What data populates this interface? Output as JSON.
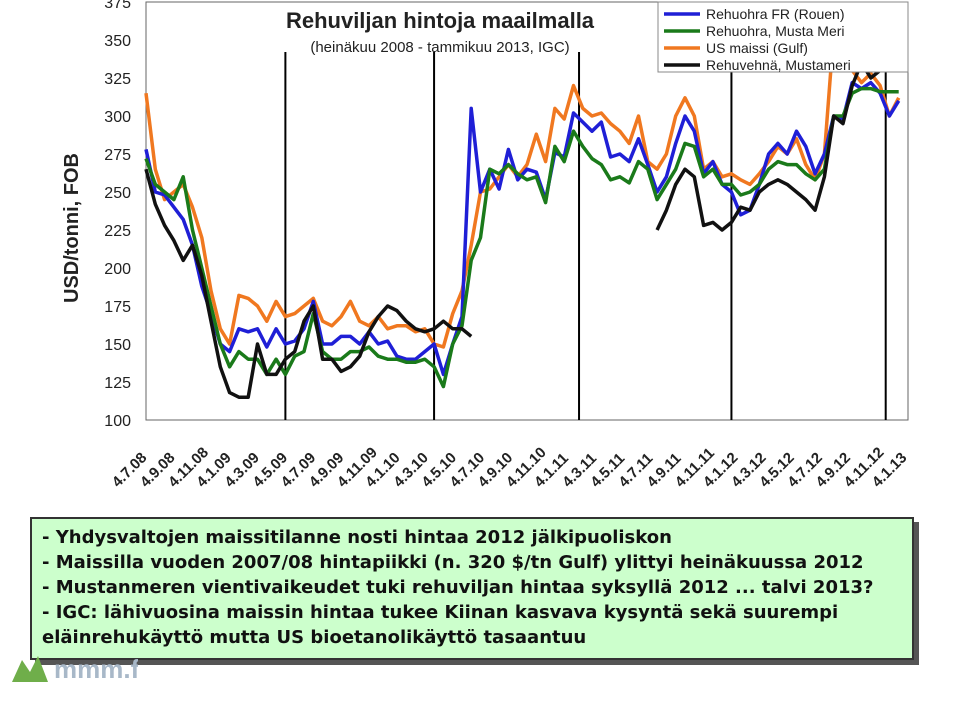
{
  "chart_data": {
    "type": "line",
    "title": "Rehuviljan hintoja maailmalla",
    "subtitle": "(heinäkuu 2008 - tammikuu 2013, IGC)",
    "ylabel": "USD/tonni, FOB",
    "ylim": [
      100,
      375
    ],
    "yticks": [
      100,
      125,
      150,
      175,
      200,
      225,
      250,
      275,
      300,
      325,
      350,
      375
    ],
    "xtick_labels": [
      "4.7.08",
      "4.9.08",
      "4.11.08",
      "4.1.09",
      "4.3.09",
      "4.5.09",
      "4.7.09",
      "4.9.09",
      "4.11.09",
      "4.1.10",
      "4.3.10",
      "4.5.10",
      "4.7.10",
      "4.9.10",
      "4.11.10",
      "4.1.11",
      "4.3.11",
      "4.5.11",
      "4.7.11",
      "4.9.11",
      "4.11.11",
      "4.1.12",
      "4.3.12",
      "4.5.12",
      "4.7.12",
      "4.9.12",
      "4.11.12",
      "4.1.13"
    ],
    "grid": false,
    "legend_position": "top-right",
    "year_markers": [
      "2009-01",
      "2010-01",
      "2011-01",
      "2012-01",
      "2013-01"
    ],
    "series": [
      {
        "name": "Rehuohra FR (Rouen)",
        "color": "#1f1fd6",
        "points": [
          [
            0,
            278
          ],
          [
            0.5,
            250
          ],
          [
            1,
            248
          ],
          [
            1.5,
            240
          ],
          [
            2,
            232
          ],
          [
            2.5,
            215
          ],
          [
            3,
            188
          ],
          [
            3.5,
            170
          ],
          [
            4,
            150
          ],
          [
            4.5,
            145
          ],
          [
            5,
            160
          ],
          [
            5.5,
            158
          ],
          [
            6,
            160
          ],
          [
            6.5,
            148
          ],
          [
            7,
            160
          ],
          [
            7.5,
            150
          ],
          [
            8,
            152
          ],
          [
            8.5,
            160
          ],
          [
            9,
            178
          ],
          [
            9.5,
            150
          ],
          [
            10,
            150
          ],
          [
            10.5,
            155
          ],
          [
            11,
            155
          ],
          [
            11.5,
            150
          ],
          [
            12,
            158
          ],
          [
            12.5,
            150
          ],
          [
            13,
            152
          ],
          [
            13.5,
            142
          ],
          [
            14,
            140
          ],
          [
            14.5,
            140
          ],
          [
            15,
            145
          ],
          [
            15.5,
            150
          ],
          [
            16,
            130
          ],
          [
            16.5,
            150
          ],
          [
            17,
            168
          ],
          [
            17.5,
            305
          ],
          [
            18,
            250
          ],
          [
            18.5,
            265
          ],
          [
            19,
            252
          ],
          [
            19.5,
            278
          ],
          [
            20,
            258
          ],
          [
            20.5,
            265
          ],
          [
            21,
            263
          ],
          [
            21.5,
            245
          ],
          [
            22,
            276
          ],
          [
            22.5,
            273
          ],
          [
            23,
            302
          ],
          [
            23.5,
            296
          ],
          [
            24,
            290
          ],
          [
            24.5,
            296
          ],
          [
            25,
            273
          ],
          [
            25.5,
            275
          ],
          [
            26,
            270
          ],
          [
            26.5,
            285
          ],
          [
            27,
            268
          ],
          [
            27.5,
            250
          ],
          [
            28,
            260
          ],
          [
            28.5,
            282
          ],
          [
            29,
            300
          ],
          [
            29.5,
            290
          ],
          [
            30,
            262
          ],
          [
            30.5,
            270
          ],
          [
            31,
            255
          ],
          [
            31.5,
            250
          ],
          [
            32,
            235
          ],
          [
            32.5,
            238
          ],
          [
            33,
            255
          ],
          [
            33.5,
            275
          ],
          [
            34,
            282
          ],
          [
            34.5,
            275
          ],
          [
            35,
            290
          ],
          [
            35.5,
            280
          ],
          [
            36,
            262
          ],
          [
            36.5,
            275
          ],
          [
            37,
            300
          ],
          [
            37.5,
            298
          ],
          [
            38,
            322
          ],
          [
            38.5,
            318
          ],
          [
            39,
            322
          ],
          [
            39.5,
            315
          ],
          [
            40,
            300
          ],
          [
            40.5,
            310
          ]
        ]
      },
      {
        "name": "Rehuohra, Musta Meri",
        "color": "#1a7a1a",
        "points": [
          [
            0,
            272
          ],
          [
            0.5,
            255
          ],
          [
            1,
            250
          ],
          [
            1.5,
            245
          ],
          [
            2,
            260
          ],
          [
            2.5,
            225
          ],
          [
            3,
            200
          ],
          [
            3.5,
            175
          ],
          [
            4,
            150
          ],
          [
            4.5,
            135
          ],
          [
            5,
            145
          ],
          [
            5.5,
            140
          ],
          [
            6,
            140
          ],
          [
            6.5,
            130
          ],
          [
            7,
            140
          ],
          [
            7.5,
            130
          ],
          [
            8,
            142
          ],
          [
            8.5,
            145
          ],
          [
            9,
            170
          ],
          [
            9.5,
            145
          ],
          [
            10,
            140
          ],
          [
            10.5,
            140
          ],
          [
            11,
            145
          ],
          [
            11.5,
            145
          ],
          [
            12,
            148
          ],
          [
            12.5,
            142
          ],
          [
            13,
            140
          ],
          [
            13.5,
            140
          ],
          [
            14,
            138
          ],
          [
            14.5,
            138
          ],
          [
            15,
            140
          ],
          [
            15.5,
            135
          ],
          [
            16,
            122
          ],
          [
            16.5,
            150
          ],
          [
            17,
            162
          ],
          [
            17.5,
            205
          ],
          [
            18,
            220
          ],
          [
            18.5,
            265
          ],
          [
            19,
            262
          ],
          [
            19.5,
            268
          ],
          [
            20,
            262
          ],
          [
            20.5,
            258
          ],
          [
            21,
            260
          ],
          [
            21.5,
            243
          ],
          [
            22,
            280
          ],
          [
            22.5,
            270
          ],
          [
            23,
            290
          ],
          [
            23.5,
            280
          ],
          [
            24,
            272
          ],
          [
            24.5,
            268
          ],
          [
            25,
            258
          ],
          [
            25.5,
            260
          ],
          [
            26,
            256
          ],
          [
            26.5,
            270
          ],
          [
            27,
            265
          ],
          [
            27.5,
            245
          ],
          [
            28,
            255
          ],
          [
            28.5,
            265
          ],
          [
            29,
            282
          ],
          [
            29.5,
            280
          ],
          [
            30,
            260
          ],
          [
            30.5,
            265
          ],
          [
            31,
            255
          ],
          [
            31.5,
            255
          ],
          [
            32,
            248
          ],
          [
            32.5,
            250
          ],
          [
            33,
            255
          ],
          [
            33.5,
            265
          ],
          [
            34,
            270
          ],
          [
            34.5,
            268
          ],
          [
            35,
            268
          ],
          [
            35.5,
            262
          ],
          [
            36,
            258
          ],
          [
            36.5,
            265
          ],
          [
            37,
            300
          ],
          [
            37.5,
            300
          ],
          [
            38,
            315
          ],
          [
            38.5,
            318
          ],
          [
            39,
            318
          ],
          [
            39.5,
            316
          ],
          [
            40,
            316
          ],
          [
            40.5,
            316
          ]
        ]
      },
      {
        "name": "US maissi (Gulf)",
        "color": "#f07820",
        "points": [
          [
            0,
            315
          ],
          [
            0.5,
            265
          ],
          [
            1,
            245
          ],
          [
            1.5,
            250
          ],
          [
            2,
            255
          ],
          [
            2.5,
            240
          ],
          [
            3,
            220
          ],
          [
            3.5,
            185
          ],
          [
            4,
            160
          ],
          [
            4.5,
            150
          ],
          [
            5,
            182
          ],
          [
            5.5,
            180
          ],
          [
            6,
            175
          ],
          [
            6.5,
            165
          ],
          [
            7,
            178
          ],
          [
            7.5,
            168
          ],
          [
            8,
            170
          ],
          [
            8.5,
            175
          ],
          [
            9,
            180
          ],
          [
            9.5,
            165
          ],
          [
            10,
            162
          ],
          [
            10.5,
            168
          ],
          [
            11,
            178
          ],
          [
            11.5,
            165
          ],
          [
            12,
            162
          ],
          [
            12.5,
            168
          ],
          [
            13,
            160
          ],
          [
            13.5,
            162
          ],
          [
            14,
            162
          ],
          [
            14.5,
            158
          ],
          [
            15,
            160
          ],
          [
            15.5,
            150
          ],
          [
            16,
            148
          ],
          [
            16.5,
            170
          ],
          [
            17,
            185
          ],
          [
            17.5,
            215
          ],
          [
            18,
            250
          ],
          [
            18.5,
            252
          ],
          [
            19,
            260
          ],
          [
            19.5,
            268
          ],
          [
            20,
            260
          ],
          [
            20.5,
            268
          ],
          [
            21,
            288
          ],
          [
            21.5,
            270
          ],
          [
            22,
            305
          ],
          [
            22.5,
            298
          ],
          [
            23,
            320
          ],
          [
            23.5,
            305
          ],
          [
            24,
            300
          ],
          [
            24.5,
            302
          ],
          [
            25,
            295
          ],
          [
            25.5,
            290
          ],
          [
            26,
            282
          ],
          [
            26.5,
            300
          ],
          [
            27,
            270
          ],
          [
            27.5,
            265
          ],
          [
            28,
            275
          ],
          [
            28.5,
            300
          ],
          [
            29,
            312
          ],
          [
            29.5,
            300
          ],
          [
            30,
            265
          ],
          [
            30.5,
            270
          ],
          [
            31,
            260
          ],
          [
            31.5,
            262
          ],
          [
            32,
            258
          ],
          [
            32.5,
            255
          ],
          [
            33,
            262
          ],
          [
            33.5,
            270
          ],
          [
            34,
            280
          ],
          [
            34.5,
            275
          ],
          [
            35,
            285
          ],
          [
            35.5,
            268
          ],
          [
            36,
            258
          ],
          [
            36.5,
            275
          ],
          [
            37,
            355
          ],
          [
            37.5,
            340
          ],
          [
            38,
            330
          ],
          [
            38.5,
            322
          ],
          [
            39,
            328
          ],
          [
            39.5,
            320
          ],
          [
            40,
            300
          ],
          [
            40.5,
            312
          ]
        ]
      },
      {
        "name": "Rehuvehnä, Mustameri",
        "color": "#111111",
        "points": [
          [
            0,
            265
          ],
          [
            0.5,
            242
          ],
          [
            1,
            228
          ],
          [
            1.5,
            218
          ],
          [
            2,
            205
          ],
          [
            2.5,
            215
          ],
          [
            3,
            195
          ],
          [
            3.5,
            165
          ],
          [
            4,
            135
          ],
          [
            4.5,
            118
          ],
          [
            5,
            115
          ],
          [
            5.5,
            115
          ],
          [
            6,
            150
          ],
          [
            6.5,
            130
          ],
          [
            7,
            130
          ],
          [
            7.5,
            140
          ],
          [
            8,
            145
          ],
          [
            8.5,
            165
          ],
          [
            9,
            175
          ],
          [
            9.5,
            140
          ],
          [
            10,
            140
          ],
          [
            10.5,
            132
          ],
          [
            11,
            135
          ],
          [
            11.5,
            142
          ],
          [
            12,
            158
          ],
          [
            12.5,
            168
          ],
          [
            13,
            175
          ],
          [
            13.5,
            172
          ],
          [
            14,
            165
          ],
          [
            14.5,
            160
          ],
          [
            15,
            158
          ],
          [
            15.5,
            160
          ],
          [
            16,
            165
          ],
          [
            16.5,
            160
          ],
          [
            17,
            160
          ],
          [
            17.5,
            155
          ],
          [
            18,
            null
          ],
          [
            27.5,
            225
          ],
          [
            28,
            238
          ],
          [
            28.5,
            255
          ],
          [
            29,
            265
          ],
          [
            29.5,
            260
          ],
          [
            30,
            228
          ],
          [
            30.5,
            230
          ],
          [
            31,
            225
          ],
          [
            31.5,
            230
          ],
          [
            32,
            240
          ],
          [
            32.5,
            238
          ],
          [
            33,
            250
          ],
          [
            33.5,
            255
          ],
          [
            34,
            258
          ],
          [
            34.5,
            255
          ],
          [
            35,
            250
          ],
          [
            35.5,
            245
          ],
          [
            36,
            238
          ],
          [
            36.5,
            260
          ],
          [
            37,
            300
          ],
          [
            37.5,
            295
          ],
          [
            38,
            320
          ],
          [
            38.5,
            335
          ],
          [
            39,
            325
          ],
          [
            39.5,
            330
          ]
        ]
      }
    ]
  },
  "notes": {
    "line1": "- Yhdysvaltojen maissitilanne nosti hintaa 2012 jälkipuoliskon",
    "line2": "- Maissilla vuoden 2007/08 hintapiikki (n. 320 $/tn Gulf) ylittyi heinäkuussa 2012",
    "line3": "- Mustanmeren vientivaikeudet tuki rehuviljan hintaa syksyllä 2012 ... talvi 2013?",
    "line4": "- IGC: lähivuosina maissin hintaa tukee Kiinan kasvava kysyntä sekä suurempi",
    "line5": "eläinrehukäyttö mutta US bioetanolikäyttö tasaantuu"
  },
  "logo": {
    "text": "mmm.fi"
  }
}
